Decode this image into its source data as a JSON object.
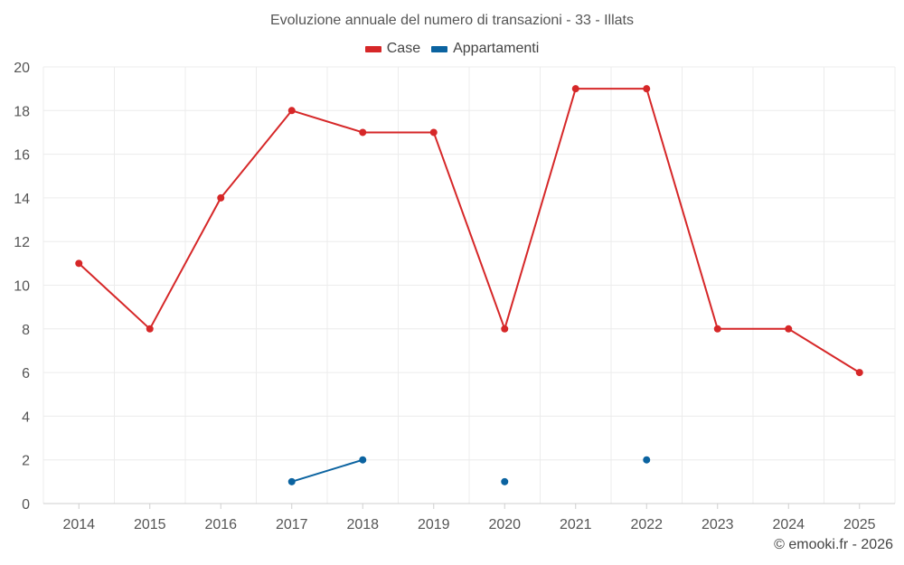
{
  "chart_data": {
    "type": "line",
    "title": "Evoluzione annuale del numero di transazioni - 33 - Illats",
    "categories": [
      "2014",
      "2015",
      "2016",
      "2017",
      "2018",
      "2019",
      "2020",
      "2021",
      "2022",
      "2023",
      "2024",
      "2025"
    ],
    "series": [
      {
        "name": "Case",
        "color": "#d62728",
        "values": [
          11,
          8,
          14,
          18,
          17,
          17,
          8,
          19,
          19,
          8,
          8,
          6
        ]
      },
      {
        "name": "Appartamenti",
        "color": "#0b63a0",
        "values": [
          null,
          null,
          null,
          1,
          2,
          null,
          1,
          null,
          2,
          null,
          null,
          null
        ]
      }
    ],
    "ylim": [
      0,
      20
    ],
    "yticks": [
      "0",
      "2",
      "4",
      "6",
      "8",
      "10",
      "12",
      "14",
      "16",
      "18",
      "20"
    ],
    "grid": true,
    "legend": "top-center"
  },
  "footer": "© emooki.fr - 2026"
}
